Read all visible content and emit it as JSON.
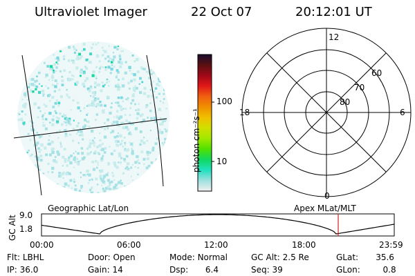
{
  "header": {
    "title": "Ultraviolet Imager",
    "date": "22 Oct 07",
    "time": "20:12:01 UT"
  },
  "colorbar": {
    "unit_label": "photon cm⁻²s⁻¹",
    "ticks": [
      "100",
      "10"
    ],
    "colors": [
      "#1a0a2e",
      "#5a1010",
      "#a00818",
      "#e01818",
      "#f06010",
      "#f09000",
      "#f0c000",
      "#d0e000",
      "#a0e800",
      "#50e000",
      "#10d860",
      "#20e0c0",
      "#a0e0e0",
      "#f0f0f0"
    ]
  },
  "left_map": {
    "caption": "Geographic Lat/Lon",
    "dot_colors": [
      "#c8ecec",
      "#a6e1e6",
      "#7ad8df",
      "#40d6c8",
      "#18d8a0"
    ]
  },
  "polar_plot": {
    "caption": "Apex MLat/MLT",
    "mlt_labels": {
      "top": "12",
      "left": "18",
      "right": "6",
      "bottom": "0"
    },
    "lat_labels": [
      "60",
      "70",
      "80"
    ]
  },
  "altitude_plot": {
    "ylabel": "GC Alt",
    "yticks": [
      "9.0",
      "1.8"
    ],
    "xticks": [
      "00:00",
      "06:00",
      "12:00",
      "18:00",
      "23:59"
    ],
    "marker_color": "#d02020"
  },
  "footer": {
    "row1": [
      {
        "label": "Flt:",
        "value": "LBHL"
      },
      {
        "label": "Door:",
        "value": "Open"
      },
      {
        "label": "Mode:",
        "value": "Normal"
      },
      {
        "label": "GC Alt:",
        "value": "2.5 Re"
      },
      {
        "label": "GLat:",
        "value": "35.6"
      }
    ],
    "row2": [
      {
        "label": "IP:",
        "value": "36.0"
      },
      {
        "label": "Gain:",
        "value": "14"
      },
      {
        "label": "Dsp:",
        "value": "6.4"
      },
      {
        "label": "Seq:",
        "value": "39"
      },
      {
        "label": "GLon:",
        "value": "0.8"
      }
    ]
  }
}
